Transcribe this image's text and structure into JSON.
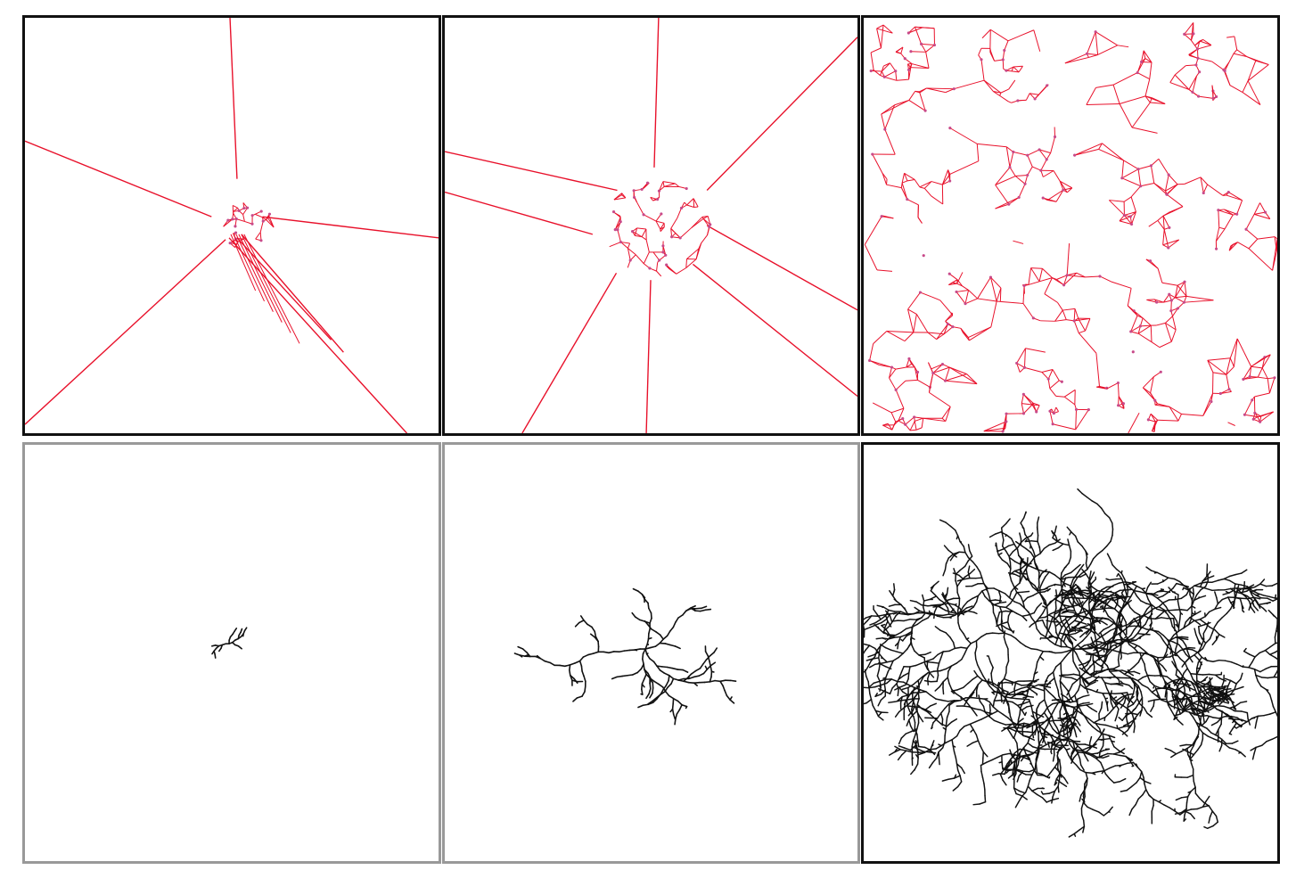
{
  "figure": {
    "panels": [
      {
        "id": "voronoi-early",
        "kind": "voronoi-mesh",
        "stage": "early"
      },
      {
        "id": "voronoi-mid",
        "kind": "voronoi-mesh",
        "stage": "mid"
      },
      {
        "id": "voronoi-late",
        "kind": "voronoi-mesh",
        "stage": "late"
      },
      {
        "id": "dendrite-early",
        "kind": "dendrite",
        "stage": "early"
      },
      {
        "id": "dendrite-mid",
        "kind": "dendrite",
        "stage": "mid"
      },
      {
        "id": "dendrite-late",
        "kind": "dendrite",
        "stage": "late"
      }
    ],
    "colors": {
      "mesh_edge": "#e8102a",
      "mesh_vertex": "#c84a8a",
      "dendrite": "#111111",
      "frame": "#111111"
    }
  }
}
